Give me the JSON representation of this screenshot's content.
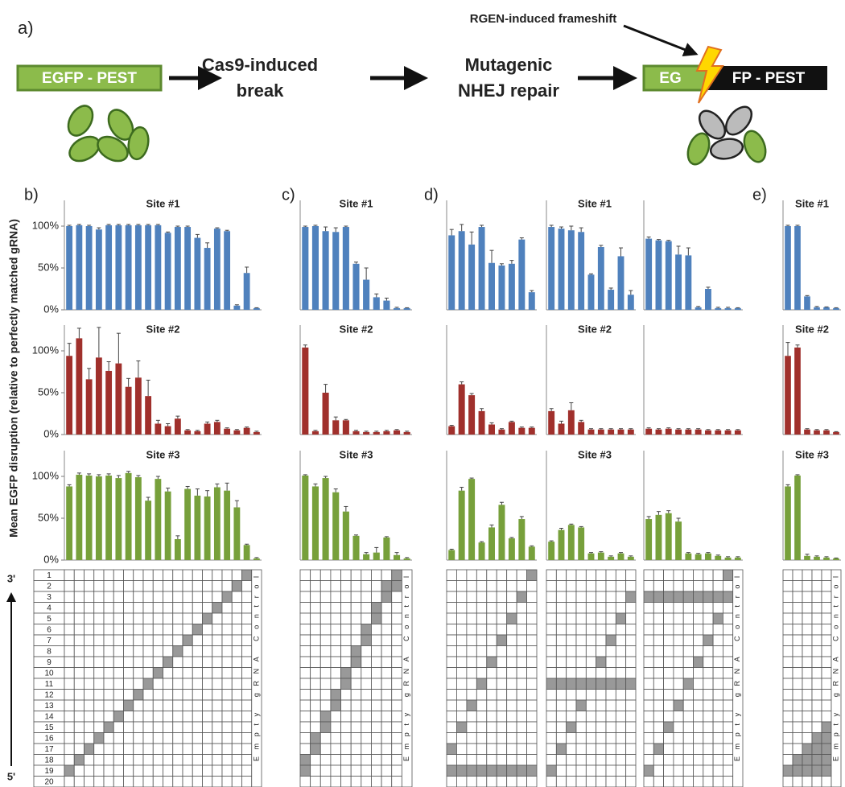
{
  "diagram": {
    "label": "a)",
    "annotation": "RGEN-induced frameshift",
    "start": "EGFP - PEST",
    "step1": [
      "Cas9-induced",
      "break"
    ],
    "step2": [
      "Mutagenic",
      "NHEJ repair"
    ],
    "result_left": "EG",
    "result_right": "FP - PEST"
  },
  "y_axis_label": "Mean EGFP disruption (relative to perfectly matched gRNA)",
  "end_top": "3'",
  "end_bottom": "5'",
  "row_labels": [
    1,
    2,
    3,
    4,
    5,
    6,
    7,
    8,
    9,
    10,
    11,
    12,
    13,
    14,
    15,
    16,
    17,
    18,
    19,
    20
  ],
  "chart_data": [
    {
      "type": "bar",
      "label": "b)",
      "ylim": [
        0,
        125
      ],
      "yticks": [
        {
          "value": 0,
          "label": "0%"
        },
        {
          "value": 50,
          "label": "50%"
        },
        {
          "value": 100,
          "label": "100%"
        }
      ],
      "sites": [
        {
          "title": "Site #1",
          "color": "#4f81bd",
          "groups": [
            {
              "values": [
                100,
                101,
                100,
                96,
                101,
                101,
                101,
                101,
                101,
                101,
                92,
                99,
                99,
                86,
                74,
                97,
                94,
                5,
                44,
                2
              ],
              "errors": [
                1,
                1,
                1,
                2,
                1,
                1,
                1,
                1,
                1,
                1,
                1,
                1,
                1,
                4,
                6,
                1,
                1,
                1,
                7,
                0.5
              ]
            }
          ]
        },
        {
          "title": "Site #2",
          "color": "#a0302c",
          "groups": [
            {
              "values": [
                94,
                115,
                66,
                92,
                76,
                85,
                57,
                68,
                46,
                13,
                10,
                19,
                5,
                4,
                13,
                15,
                7,
                5,
                8,
                3
              ],
              "errors": [
                15,
                12,
                13,
                36,
                11,
                36,
                10,
                20,
                19,
                4,
                3,
                3,
                1,
                1,
                2,
                2,
                1,
                1,
                1,
                1
              ]
            }
          ]
        },
        {
          "title": "Site #3",
          "color": "#77a03b",
          "groups": [
            {
              "values": [
                88,
                102,
                101,
                100,
                101,
                98,
                104,
                99,
                71,
                97,
                82,
                25,
                85,
                77,
                76,
                87,
                83,
                63,
                18,
                2
              ],
              "errors": [
                2,
                2,
                2,
                2,
                2,
                3,
                2,
                2,
                4,
                3,
                4,
                4,
                3,
                8,
                7,
                4,
                9,
                8,
                1,
                1
              ]
            }
          ]
        }
      ],
      "grid": [
        {
          "full_rows": [],
          "mismatches": [
            [
              19
            ],
            [
              18
            ],
            [
              17
            ],
            [
              16
            ],
            [
              15
            ],
            [
              14
            ],
            [
              13
            ],
            [
              12
            ],
            [
              11
            ],
            [
              10
            ],
            [
              9
            ],
            [
              8
            ],
            [
              7
            ],
            [
              6
            ],
            [
              5
            ],
            [
              4
            ],
            [
              3
            ],
            [
              2
            ],
            [
              1
            ],
            []
          ],
          "control_label": "Empty gRNA Control"
        }
      ]
    },
    {
      "type": "bar",
      "label": "c)",
      "ylim": [
        0,
        125
      ],
      "sites": [
        {
          "title": "Site #1",
          "color": "#4f81bd",
          "groups": [
            {
              "values": [
                99,
                100,
                94,
                93,
                99,
                55,
                36,
                15,
                11,
                2,
                2
              ],
              "errors": [
                1,
                1,
                5,
                5,
                1,
                2,
                14,
                4,
                3,
                1,
                0.5
              ]
            }
          ]
        },
        {
          "title": "Site #2",
          "color": "#a0302c",
          "groups": [
            {
              "values": [
                104,
                4,
                50,
                17,
                17,
                4,
                3,
                3,
                4,
                5,
                3
              ],
              "errors": [
                3,
                1,
                10,
                4,
                1,
                1,
                1,
                1,
                1,
                1,
                1
              ]
            }
          ]
        },
        {
          "title": "Site #3",
          "color": "#77a03b",
          "groups": [
            {
              "values": [
                101,
                88,
                98,
                81,
                58,
                29,
                7,
                9,
                27,
                6,
                2
              ],
              "errors": [
                1,
                3,
                2,
                4,
                6,
                1,
                2,
                6,
                1,
                3,
                1
              ]
            }
          ]
        }
      ],
      "grid": [
        {
          "full_rows": [],
          "mismatches": [
            [
              18,
              19
            ],
            [
              16,
              17
            ],
            [
              14,
              15
            ],
            [
              12,
              13
            ],
            [
              10,
              11
            ],
            [
              8,
              9
            ],
            [
              6,
              7
            ],
            [
              4,
              5
            ],
            [
              2,
              3
            ],
            [
              1,
              2
            ],
            []
          ],
          "control_label": "Empty gRNA Control"
        }
      ]
    },
    {
      "type": "bar",
      "label": "d)",
      "ylim": [
        0,
        125
      ],
      "sites": [
        {
          "title": "Site #1",
          "color": "#4f81bd",
          "groups": [
            {
              "values": [
                89,
                94,
                78,
                99,
                56,
                53,
                55,
                84,
                21
              ],
              "errors": [
                7,
                8,
                15,
                2,
                15,
                2,
                4,
                2,
                2
              ]
            },
            {
              "values": [
                99,
                97,
                95,
                93,
                42,
                75,
                24,
                64,
                18
              ],
              "errors": [
                2,
                2,
                5,
                5,
                1,
                2,
                2,
                10,
                5
              ]
            },
            {
              "values": [
                85,
                83,
                82,
                66,
                65,
                3,
                25,
                2,
                2,
                2
              ],
              "errors": [
                2,
                1,
                1,
                10,
                9,
                1,
                2,
                1,
                1,
                0.5
              ]
            }
          ]
        },
        {
          "title": "Site #2",
          "color": "#a0302c",
          "groups": [
            {
              "values": [
                10,
                60,
                47,
                28,
                12,
                6,
                15,
                8,
                8
              ],
              "errors": [
                1,
                3,
                2,
                3,
                2,
                1,
                1,
                1,
                1
              ]
            },
            {
              "values": [
                28,
                13,
                29,
                15,
                6,
                6,
                6,
                6,
                6
              ],
              "errors": [
                3,
                3,
                9,
                2,
                1,
                1,
                1,
                1,
                1
              ]
            },
            {
              "values": [
                7,
                6,
                7,
                6,
                6,
                6,
                5,
                5,
                5,
                5
              ],
              "errors": [
                1,
                1,
                1,
                1,
                1,
                1,
                1,
                1,
                1,
                1
              ]
            }
          ]
        },
        {
          "title": "Site #3",
          "color": "#77a03b",
          "groups": [
            {
              "values": [
                12,
                83,
                97,
                21,
                39,
                66,
                26,
                49,
                16
              ],
              "errors": [
                1,
                4,
                1,
                1,
                3,
                3,
                1,
                3,
                1
              ]
            },
            {
              "values": [
                22,
                36,
                42,
                39,
                8,
                9,
                4,
                8,
                4
              ],
              "errors": [
                1,
                2,
                1,
                1,
                1,
                1,
                1,
                1,
                1
              ]
            },
            {
              "values": [
                49,
                54,
                56,
                46,
                8,
                7,
                8,
                5,
                3,
                3
              ],
              "errors": [
                3,
                4,
                3,
                4,
                1,
                1,
                1,
                1,
                1,
                1
              ]
            }
          ]
        }
      ],
      "grid": [
        {
          "full_rows": [
            19
          ],
          "mismatches": [
            [
              17
            ],
            [
              15
            ],
            [
              13
            ],
            [
              11
            ],
            [
              9
            ],
            [
              7
            ],
            [
              5
            ],
            [
              3
            ],
            [
              1
            ]
          ]
        },
        {
          "full_rows": [
            11
          ],
          "mismatches": [
            [
              19
            ],
            [
              17
            ],
            [
              15
            ],
            [
              13
            ],
            [],
            [
              9
            ],
            [
              7
            ],
            [
              5
            ],
            [
              3
            ]
          ]
        },
        {
          "full_rows": [
            3
          ],
          "mismatches": [
            [
              19
            ],
            [
              17
            ],
            [
              15
            ],
            [
              13
            ],
            [
              11
            ],
            [
              9
            ],
            [
              7
            ],
            [
              5
            ],
            [
              1
            ],
            []
          ],
          "control_label": "Empty gRNA Control"
        }
      ]
    },
    {
      "type": "bar",
      "label": "e)",
      "ylim": [
        0,
        125
      ],
      "sites": [
        {
          "title": "Site #1",
          "color": "#4f81bd",
          "groups": [
            {
              "values": [
                100,
                100,
                16,
                3,
                3,
                2
              ],
              "errors": [
                1,
                1,
                1,
                1,
                0.5,
                0.5
              ]
            }
          ]
        },
        {
          "title": "Site #2",
          "color": "#a0302c",
          "groups": [
            {
              "values": [
                94,
                104,
                6,
                5,
                5,
                3
              ],
              "errors": [
                16,
                3,
                1,
                1,
                1,
                0.5
              ]
            }
          ]
        },
        {
          "title": "Site #3",
          "color": "#77a03b",
          "groups": [
            {
              "values": [
                88,
                101,
                5,
                4,
                3,
                2
              ],
              "errors": [
                2,
                1,
                2,
                1,
                1,
                0.5
              ]
            }
          ]
        }
      ],
      "grid": [
        {
          "full_rows": [],
          "mismatches": [
            [
              19
            ],
            [
              18,
              19
            ],
            [
              17,
              18,
              19
            ],
            [
              16,
              17,
              18,
              19
            ],
            [
              15,
              16,
              17,
              18,
              19
            ],
            []
          ],
          "control_label": "Empty gRNA Control"
        }
      ]
    }
  ]
}
